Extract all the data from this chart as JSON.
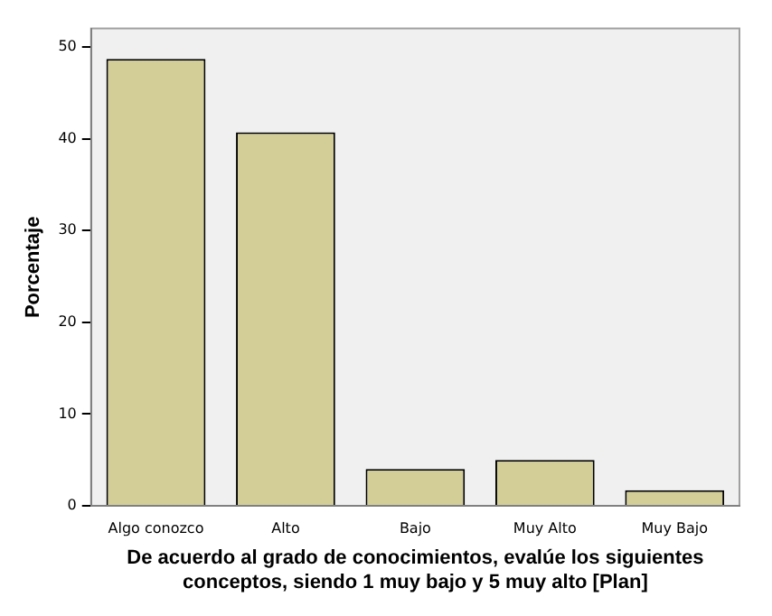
{
  "chart_data": {
    "type": "bar",
    "xlabel": "De acuerdo al grado de conocimientos, evalúe los siguientes conceptos, siendo 1 muy bajo y 5 muy alto [Plan]",
    "ylabel": "Porcentaje",
    "categories": [
      "Algo conozco",
      "Alto",
      "Bajo",
      "Muy Alto",
      "Muy Bajo"
    ],
    "values": [
      48.7,
      40.7,
      4.0,
      5.0,
      1.7
    ],
    "color": "#d3ce97",
    "ylim": [
      0,
      52
    ],
    "yticks": [
      0,
      10,
      20,
      30,
      40,
      50
    ],
    "grid": false,
    "legend": false
  }
}
